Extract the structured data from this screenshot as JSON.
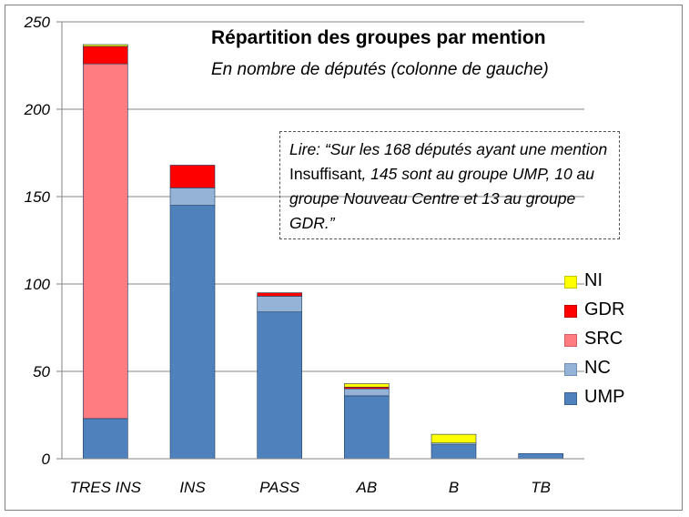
{
  "chart_data": {
    "type": "bar",
    "stacked": true,
    "title": "Répartition des groupes par mention",
    "subtitle": "En nombre de députés  (colonne de gauche)",
    "categories": [
      "TRES INS",
      "INS",
      "PASS",
      "AB",
      "B",
      "TB"
    ],
    "series": [
      {
        "name": "UMP",
        "color": "#4f81bd",
        "values": [
          23,
          145,
          84,
          36,
          8,
          3
        ]
      },
      {
        "name": "NC",
        "color": "#95b3d7",
        "values": [
          0,
          10,
          9,
          4,
          1,
          0
        ]
      },
      {
        "name": "SRC",
        "color": "#ff7c80",
        "values": [
          203,
          0,
          0,
          0,
          0,
          0
        ]
      },
      {
        "name": "GDR",
        "color": "#ff0000",
        "values": [
          10,
          13,
          2,
          1,
          0,
          0
        ]
      },
      {
        "name": "NI",
        "color": "#ffff00",
        "values": [
          1,
          0,
          0,
          2,
          5,
          0
        ]
      }
    ],
    "ylim": [
      0,
      250
    ],
    "yticks": [
      0,
      50,
      100,
      150,
      200,
      250
    ],
    "grid": true,
    "legend_position": "right",
    "legend_order": [
      "NI",
      "GDR",
      "SRC",
      "NC",
      "UMP"
    ],
    "annotation": {
      "prefix": "Lire:  “Sur les 168 députés ayant une mention ",
      "emphasis": "Insuffisant",
      "suffix": ", 145 sont au groupe UMP, 10 au groupe Nouveau Centre et 13 au groupe GDR.”"
    }
  }
}
